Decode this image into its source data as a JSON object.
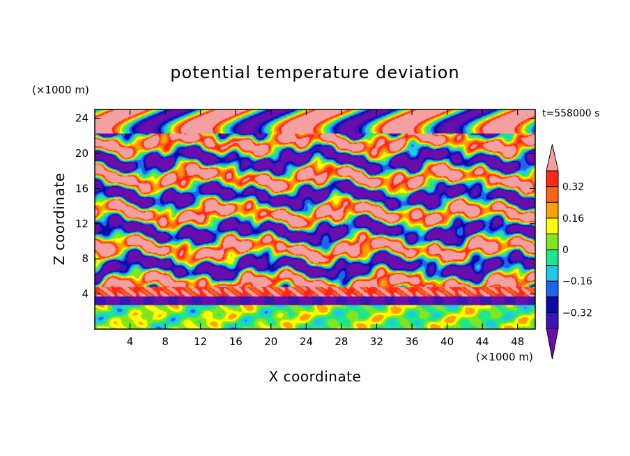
{
  "chart_data": {
    "type": "heatmap",
    "title": "potential temperature deviation",
    "xlabel": "X coordinate",
    "ylabel": "Z coordinate",
    "x_unit": "(×1000 m)",
    "y_unit": "(×1000 m)",
    "time_label": "t=558000 s",
    "xlim": [
      0,
      50
    ],
    "ylim": [
      0,
      25
    ],
    "x_ticks": [
      4,
      8,
      12,
      16,
      20,
      24,
      28,
      32,
      36,
      40,
      44,
      48
    ],
    "y_ticks": [
      4,
      8,
      12,
      16,
      20,
      24
    ],
    "colorbar": {
      "levels": [
        -0.4,
        -0.32,
        -0.24,
        -0.16,
        -0.08,
        0,
        0.08,
        0.16,
        0.24,
        0.32,
        0.4
      ],
      "tick_labels": [
        {
          "value": 0.32,
          "label": "0.32"
        },
        {
          "value": 0.16,
          "label": "0.16"
        },
        {
          "value": 0,
          "label": "0"
        },
        {
          "value": -0.16,
          "label": "−0.16"
        },
        {
          "value": -0.32,
          "label": "−0.32"
        }
      ],
      "colors": [
        "#6a0dad",
        "#3a14b8",
        "#0a0aa8",
        "#1e64f0",
        "#1ec8e6",
        "#1ee68c",
        "#82e61e",
        "#ffff00",
        "#ffa000",
        "#ff6414",
        "#ff2814",
        "#f5a0a0"
      ],
      "extend": "both"
    },
    "field_description": "Banded turbulent potential temperature deviation field; strongly positive (pink) and strongly negative (purple) layers alternate above z≈4, a thin pink/red band near z≈4, and weaker mixed green/blue values below."
  }
}
